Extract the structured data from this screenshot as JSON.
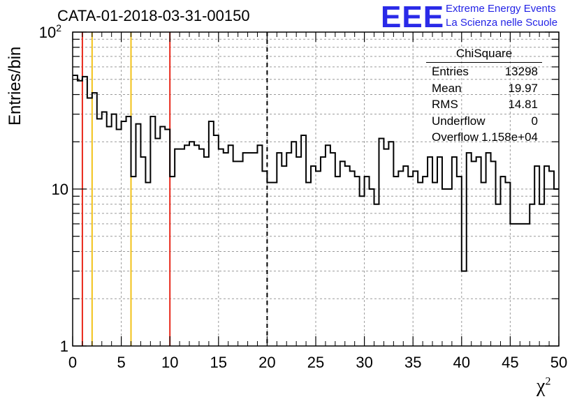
{
  "title": "CATA-01-2018-03-31-00150",
  "logo": {
    "text": "EEE",
    "line1": "Extreme Energy Events",
    "line2": "La Scienza nelle Scuole"
  },
  "stats": {
    "title": "ChiSquare",
    "rows": [
      {
        "key": "Entries",
        "value": "13298"
      },
      {
        "key": "Mean",
        "value": "19.97"
      },
      {
        "key": "RMS",
        "value": "14.81"
      },
      {
        "key": "Underflow",
        "value": "0"
      },
      {
        "key": "Overflow",
        "value": "1.158e+04"
      }
    ]
  },
  "chart_data": {
    "type": "bar",
    "title": "CATA-01-2018-03-31-00150",
    "xlabel": "χ2",
    "ylabel": "Entries/bin",
    "xlim": [
      0,
      50
    ],
    "ylim": [
      1,
      100
    ],
    "yscale": "log",
    "grid": true,
    "bin_width": 0.5,
    "x_ticks": [
      "0",
      "5",
      "10",
      "15",
      "20",
      "25",
      "30",
      "35",
      "40",
      "45",
      "50"
    ],
    "y_ticks": [
      "1",
      "10",
      "10^2"
    ],
    "values": [
      53,
      49,
      52,
      38,
      41,
      28,
      31,
      25,
      30,
      24,
      27,
      29,
      12,
      26,
      16,
      11,
      29,
      21,
      25,
      24,
      12,
      18,
      18,
      19,
      20,
      19,
      18,
      16,
      27,
      22,
      18,
      17,
      19,
      15,
      15,
      17,
      17,
      17,
      19,
      13,
      11,
      11,
      17,
      14,
      17,
      20,
      16,
      22,
      11,
      14,
      13,
      16,
      19,
      17,
      12,
      15,
      14,
      13,
      12,
      9,
      12,
      10,
      8,
      21,
      18,
      20,
      12,
      13,
      14,
      12,
      13,
      11,
      12,
      16,
      11,
      16,
      10,
      10,
      16,
      12,
      3,
      17,
      15,
      16,
      11,
      17,
      15,
      8,
      12,
      11,
      6,
      6,
      6,
      6,
      8,
      14,
      8,
      14,
      13,
      10
    ],
    "vertical_lines": [
      {
        "x": 1,
        "color": "#e8281a",
        "style": "solid"
      },
      {
        "x": 2,
        "color": "#f2c21a",
        "style": "solid"
      },
      {
        "x": 6,
        "color": "#f2c21a",
        "style": "solid"
      },
      {
        "x": 10,
        "color": "#e8281a",
        "style": "solid"
      },
      {
        "x": 20,
        "color": "#000000",
        "style": "dashed"
      }
    ]
  }
}
